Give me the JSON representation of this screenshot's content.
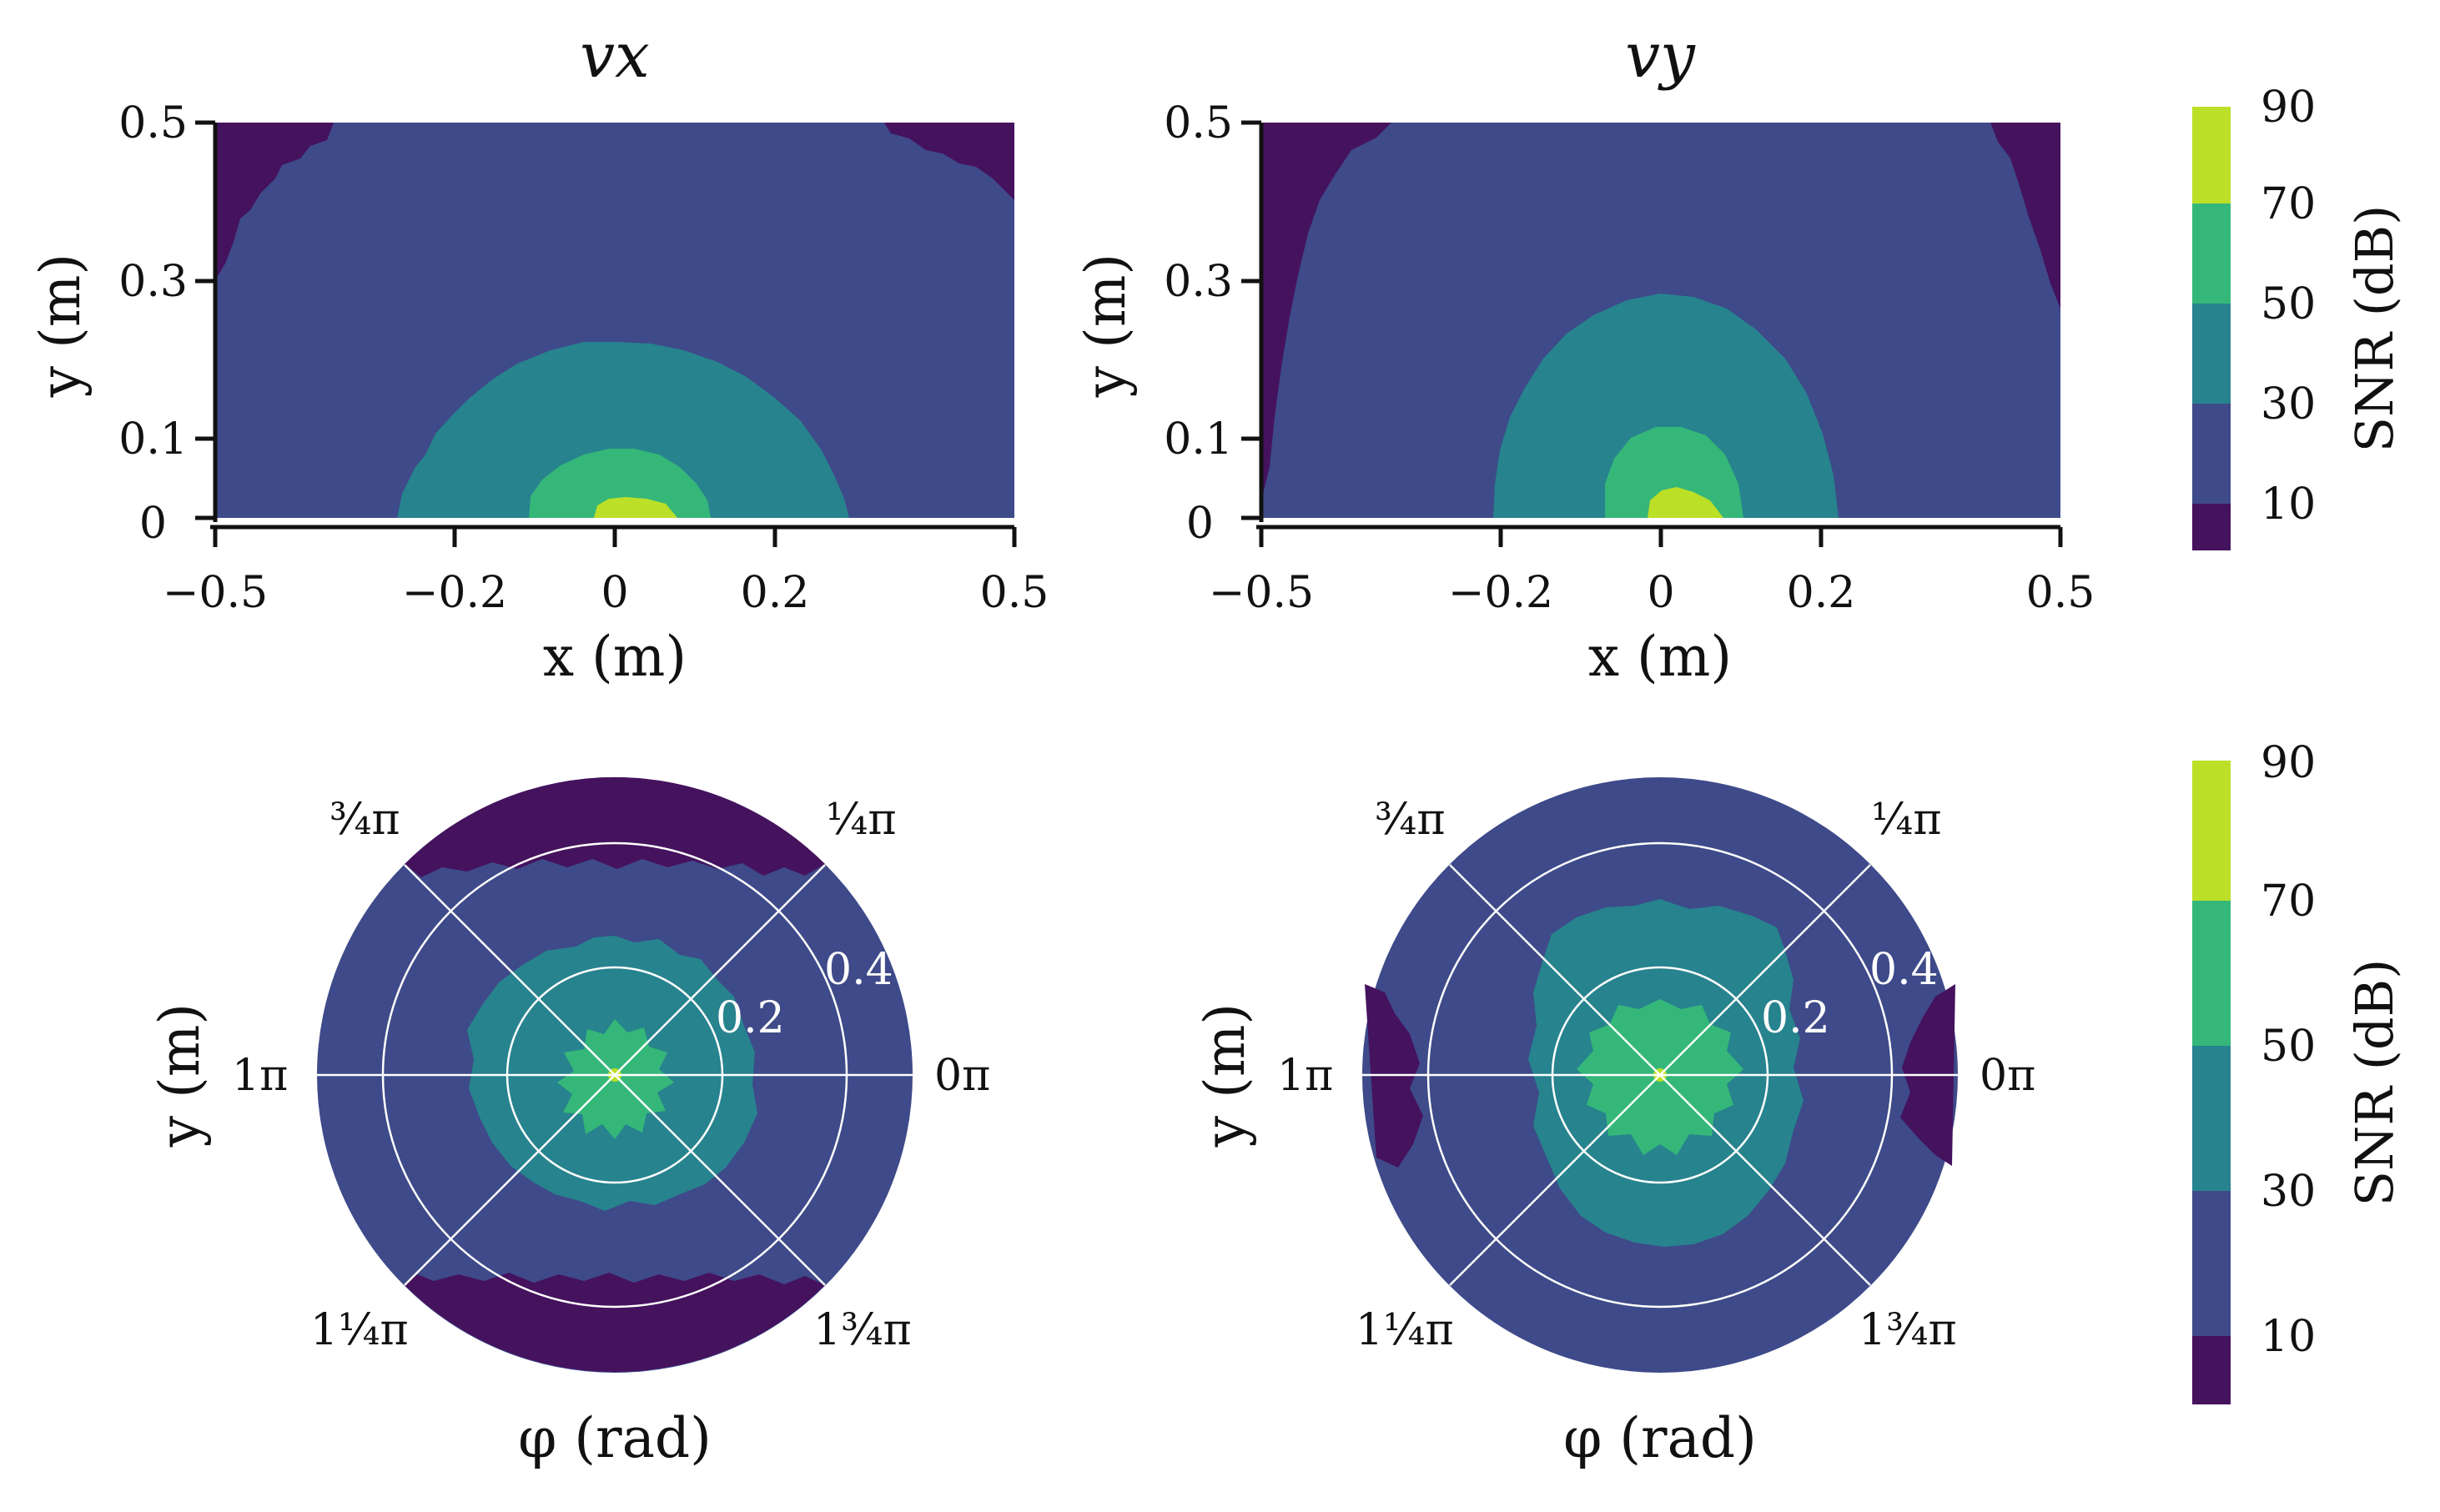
{
  "palette": {
    "band_10": "#45125e",
    "band_30": "#3e4a89",
    "band_50": "#27838e",
    "band_70": "#35b779",
    "band_90": "#bcdf27",
    "polar_grid": "#ffffff",
    "axis": "#111111"
  },
  "chart_data": [
    {
      "type": "heatmap",
      "subtype": "filled-contour",
      "title": "vx",
      "xlabel": "x (m)",
      "ylabel": "y (m)",
      "xlim": [
        -0.5,
        0.5
      ],
      "ylim": [
        0,
        0.5
      ],
      "xticks": [
        -0.5,
        -0.2,
        0,
        0.2,
        0.5
      ],
      "xtick_labels": [
        "−0.5",
        "−0.2",
        "0",
        "0.2",
        "0.5"
      ],
      "yticks": [
        0,
        0.1,
        0.3,
        0.5
      ],
      "ytick_labels": [
        "0",
        "0.1",
        "0.3",
        "0.5"
      ],
      "levels": [
        10,
        30,
        50,
        70,
        90
      ],
      "regions": [
        {
          "band": "band_90",
          "center": [
            0.03,
            0
          ],
          "rx": 0.07,
          "ry": 0.025
        },
        {
          "band": "band_70",
          "center": [
            0.02,
            0
          ],
          "rx": 0.12,
          "ry": 0.09
        },
        {
          "band": "band_50",
          "center": [
            0.0,
            0
          ],
          "rx": 0.3,
          "ry": 0.22
        },
        {
          "band": "band_10",
          "corner": "top-left",
          "x_extent": 0.12,
          "y_extent": 0.2
        },
        {
          "band": "band_10",
          "corner": "top-right",
          "x_extent": 0.1,
          "y_extent": 0.1
        }
      ],
      "background_band": "band_30"
    },
    {
      "type": "heatmap",
      "subtype": "filled-contour",
      "title": "vy",
      "xlabel": "x (m)",
      "ylabel": "y (m)",
      "xlim": [
        -0.5,
        0.5
      ],
      "ylim": [
        0,
        0.5
      ],
      "xticks": [
        -0.5,
        -0.2,
        0,
        0.2,
        0.5
      ],
      "xtick_labels": [
        "−0.5",
        "−0.2",
        "0",
        "0.2",
        "0.5"
      ],
      "yticks": [
        0,
        0.1,
        0.3,
        0.5
      ],
      "ytick_labels": [
        "0",
        "0.1",
        "0.3",
        "0.5"
      ],
      "levels": [
        10,
        30,
        50,
        70,
        90
      ],
      "regions": [
        {
          "band": "band_90",
          "center": [
            0.03,
            0
          ],
          "rx": 0.05,
          "ry": 0.04
        },
        {
          "band": "band_70",
          "center": [
            0.02,
            0
          ],
          "rx": 0.13,
          "ry": 0.12
        },
        {
          "band": "band_50",
          "center": [
            0.0,
            0
          ],
          "rx": 0.26,
          "ry": 0.28
        },
        {
          "band": "band_10",
          "corner": "top-left",
          "x_extent": 0.12,
          "y_extent": 0.45
        },
        {
          "band": "band_10",
          "corner": "top-right",
          "x_extent": 0.1,
          "y_extent": 0.35
        }
      ],
      "background_band": "band_30"
    },
    {
      "type": "heatmap",
      "subtype": "polar-contour",
      "xlabel": "φ (rad)",
      "ylabel": "y (m)",
      "r_ticks": [
        0.2,
        0.4
      ],
      "rlim": [
        0,
        0.5
      ],
      "angle_labels": [
        "0π",
        "¼π",
        "¾π",
        "1π",
        "1¼π",
        "1¾π"
      ],
      "levels": [
        10,
        30,
        50,
        70,
        90
      ],
      "regions": [
        {
          "band": "band_50",
          "r": 0.25
        },
        {
          "band": "band_70",
          "r": 0.09
        },
        {
          "band": "band_90",
          "r": 0.02
        },
        {
          "band": "band_10",
          "edge": "top",
          "from_r": 0.46
        },
        {
          "band": "band_10",
          "edge": "bottom",
          "from_r": 0.45
        }
      ],
      "background_band": "band_30"
    },
    {
      "type": "heatmap",
      "subtype": "polar-contour",
      "xlabel": "φ (rad)",
      "ylabel": "y (m)",
      "r_ticks": [
        0.2,
        0.4
      ],
      "rlim": [
        0,
        0.5
      ],
      "angle_labels": [
        "0π",
        "¼π",
        "¾π",
        "1π",
        "1¼π",
        "1¾π"
      ],
      "levels": [
        10,
        30,
        50,
        70,
        90
      ],
      "regions": [
        {
          "band": "band_50",
          "r": 0.34
        },
        {
          "band": "band_70",
          "r": 0.1
        },
        {
          "band": "band_90",
          "r": 0.02
        },
        {
          "band": "band_10",
          "edge": "left",
          "from_r": 0.45
        },
        {
          "band": "band_10",
          "edge": "right",
          "from_r": 0.45
        }
      ],
      "background_band": "band_30"
    }
  ],
  "colorbars": [
    {
      "label": "SNR (dB)",
      "tick_labels": [
        "10",
        "30",
        "50",
        "70",
        "90"
      ]
    },
    {
      "label": "SNR (dB)",
      "tick_labels": [
        "10",
        "30",
        "50",
        "70",
        "90"
      ]
    }
  ]
}
